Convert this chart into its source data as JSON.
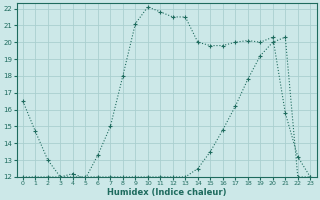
{
  "xlabel": "Humidex (Indice chaleur)",
  "bg_color": "#cce8e8",
  "line_color": "#1e6b5e",
  "grid_color": "#aacfcf",
  "xlim": [
    -0.5,
    23.5
  ],
  "ylim": [
    12,
    22.3
  ],
  "xticks": [
    0,
    1,
    2,
    3,
    4,
    5,
    6,
    7,
    8,
    9,
    10,
    11,
    12,
    13,
    14,
    15,
    16,
    17,
    18,
    19,
    20,
    21,
    22,
    23
  ],
  "yticks": [
    12,
    13,
    14,
    15,
    16,
    17,
    18,
    19,
    20,
    21,
    22
  ],
  "curve1_x": [
    0,
    1,
    2,
    3,
    4,
    5,
    6,
    7,
    8,
    9,
    10,
    11,
    12,
    13,
    14,
    15,
    16,
    17,
    18,
    19,
    20,
    21,
    22,
    23
  ],
  "curve1_y": [
    16.5,
    14.7,
    13.0,
    12.0,
    12.2,
    11.9,
    13.3,
    15.0,
    18.0,
    21.1,
    22.1,
    21.8,
    21.5,
    21.5,
    20.0,
    19.8,
    19.8,
    20.0,
    20.1,
    20.0,
    20.3,
    15.8,
    13.2,
    12.0
  ],
  "curve2_x": [
    0,
    1,
    2,
    3,
    4,
    5,
    6,
    7,
    8,
    9,
    10,
    11,
    12,
    13,
    14,
    15,
    16,
    17,
    18,
    19,
    20,
    21,
    22,
    23
  ],
  "curve2_y": [
    12.0,
    12.0,
    12.0,
    12.0,
    12.0,
    12.0,
    12.0,
    12.0,
    12.0,
    12.0,
    12.0,
    12.0,
    12.0,
    12.0,
    12.5,
    13.5,
    14.8,
    16.2,
    17.8,
    19.2,
    20.0,
    20.3,
    12.0,
    12.0
  ]
}
